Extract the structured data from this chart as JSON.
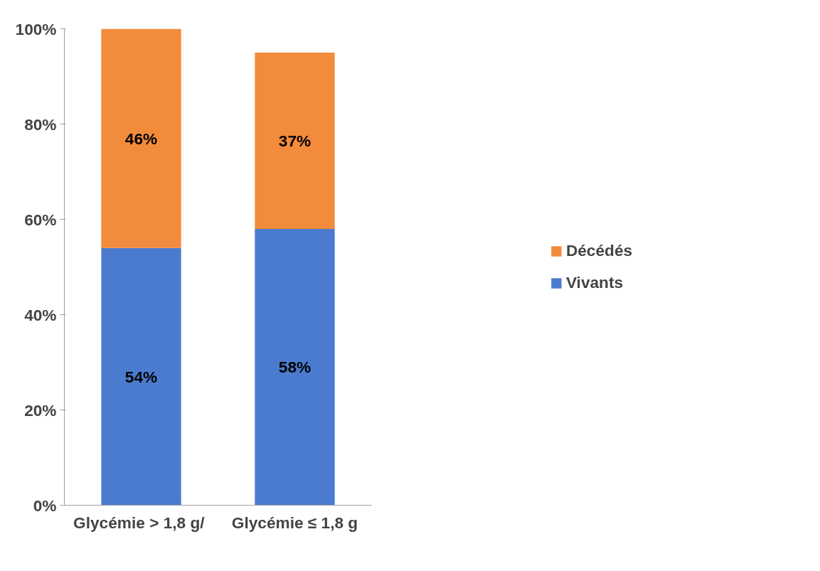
{
  "chart_data": {
    "type": "bar",
    "stacked": true,
    "categories": [
      "Glycémie >  1,8 g/",
      "Glycémie ≤ 1,8 g"
    ],
    "series": [
      {
        "name": "Vivants",
        "color": "#4a7bcf",
        "values": [
          54,
          58
        ],
        "value_labels": [
          "54%",
          "58%"
        ]
      },
      {
        "name": "Décédés",
        "color": "#f38b3c",
        "values": [
          46,
          37
        ],
        "value_labels": [
          "46%",
          "37%"
        ]
      }
    ],
    "ylim": [
      0,
      100
    ],
    "yticks": [
      {
        "value": 0,
        "label": "0%"
      },
      {
        "value": 20,
        "label": "20%"
      },
      {
        "value": 40,
        "label": "40%"
      },
      {
        "value": 60,
        "label": "60%"
      },
      {
        "value": 80,
        "label": "80%"
      },
      {
        "value": 100,
        "label": "100%"
      }
    ],
    "grid": false,
    "legend": "right"
  }
}
